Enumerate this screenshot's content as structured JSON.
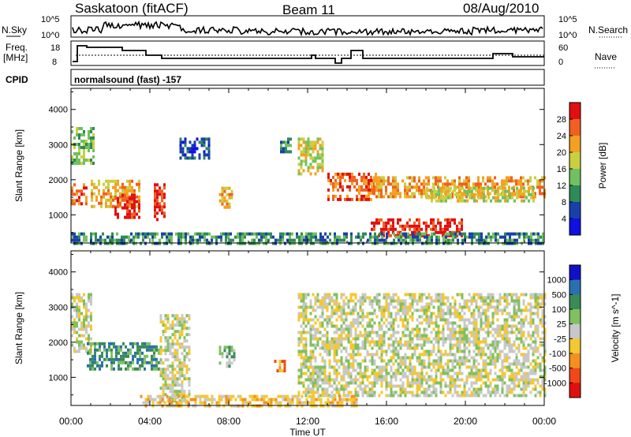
{
  "header": {
    "station": "Saskatoon (fitACF)",
    "beam": "Beam 11",
    "date": "08/Aug/2010"
  },
  "top_panels": {
    "nsky_label": "N.Sky",
    "nsearch_label": "N.Search",
    "nsky_ticks": [
      "10^5",
      "10^0"
    ],
    "nsearch_ticks": [
      "10^5",
      "10^0"
    ],
    "freq_label_line1": "Freq.",
    "freq_label_line2": "[MHz]",
    "freq_ticks": [
      "18",
      "8"
    ],
    "nave_label": "Nave",
    "nave_ticks": [
      "60",
      "0"
    ],
    "cpid_label": "CPID",
    "cpid_value": "normalsound (fast) -157"
  },
  "chart_data": [
    {
      "type": "heatmap",
      "title": "",
      "xlabel": "Time UT",
      "ylabel": "Slant Range [km]",
      "x_ticks": [
        "00:00",
        "04:00",
        "08:00",
        "12:00",
        "16:00",
        "20:00",
        "00:00"
      ],
      "y_ticks": [
        1000,
        2000,
        3000,
        4000
      ],
      "xlim": [
        0,
        24
      ],
      "ylim": [
        200,
        4600
      ],
      "colorbar": {
        "label": "Power [dB]",
        "ticks": [
          "28",
          "24",
          "20",
          "16",
          "12",
          "8",
          "4"
        ],
        "colors": [
          "#1010e0",
          "#1840a8",
          "#2e8a57",
          "#72c060",
          "#c8d040",
          "#f4a020",
          "#f06020",
          "#e01010"
        ]
      },
      "regions": [
        {
          "t0": 0.0,
          "t1": 1.2,
          "r0": 2500,
          "r1": 3500,
          "level": 3
        },
        {
          "t0": 0.0,
          "t1": 0.8,
          "r0": 1300,
          "r1": 1900,
          "level": 6
        },
        {
          "t0": 1.0,
          "t1": 3.5,
          "r0": 1200,
          "r1": 2000,
          "level": 5
        },
        {
          "t0": 2.2,
          "t1": 3.5,
          "r0": 900,
          "r1": 1600,
          "level": 7
        },
        {
          "t0": 4.2,
          "t1": 4.8,
          "r0": 900,
          "r1": 1900,
          "level": 7
        },
        {
          "t0": 5.5,
          "t1": 7.0,
          "r0": 2600,
          "r1": 3200,
          "level": 1
        },
        {
          "t0": 7.5,
          "t1": 8.2,
          "r0": 1200,
          "r1": 1800,
          "level": 5
        },
        {
          "t0": 10.6,
          "t1": 11.2,
          "r0": 2800,
          "r1": 3200,
          "level": 2
        },
        {
          "t0": 11.5,
          "t1": 12.8,
          "r0": 2200,
          "r1": 3200,
          "level": 4
        },
        {
          "t0": 13.0,
          "t1": 15.5,
          "r0": 1400,
          "r1": 2200,
          "level": 6
        },
        {
          "t0": 15.2,
          "t1": 19.8,
          "r0": 400,
          "r1": 900,
          "level": 7
        },
        {
          "t0": 15.2,
          "t1": 24.0,
          "r0": 1500,
          "r1": 2100,
          "level": 5
        },
        {
          "t0": 18.0,
          "t1": 23.5,
          "r0": 1400,
          "r1": 1800,
          "level": 4
        },
        {
          "t0": 0.0,
          "t1": 24.0,
          "r0": 200,
          "r1": 500,
          "level": 2
        }
      ]
    },
    {
      "type": "heatmap",
      "title": "",
      "xlabel": "Time UT",
      "ylabel": "Slant Range [km]",
      "x_ticks": [
        "00:00",
        "04:00",
        "08:00",
        "12:00",
        "16:00",
        "20:00",
        "00:00"
      ],
      "y_ticks": [
        1000,
        2000,
        3000,
        4000
      ],
      "xlim": [
        0,
        24
      ],
      "ylim": [
        200,
        4600
      ],
      "colorbar": {
        "label": "Velocity [m s^-1]",
        "ticks": [
          "1000",
          "500",
          "100",
          "25",
          "-25",
          "-100",
          "-500",
          "-1000"
        ],
        "colors": [
          "#e01010",
          "#f04818",
          "#f49020",
          "#f4c830",
          "#c8c8c8",
          "#80c060",
          "#3a8a5a",
          "#2a70b0",
          "#1010c8"
        ]
      },
      "regions": [
        {
          "t0": 0.0,
          "t1": 1.0,
          "r0": 1700,
          "r1": 3400,
          "level": 4
        },
        {
          "t0": 0.8,
          "t1": 4.5,
          "r0": 1200,
          "r1": 2000,
          "level": 6
        },
        {
          "t0": 4.5,
          "t1": 6.0,
          "r0": 300,
          "r1": 2800,
          "level": 4
        },
        {
          "t0": 7.5,
          "t1": 8.3,
          "r0": 1300,
          "r1": 1900,
          "level": 5
        },
        {
          "t0": 10.3,
          "t1": 10.8,
          "r0": 1200,
          "r1": 1500,
          "level": 2
        },
        {
          "t0": 11.5,
          "t1": 24.0,
          "r0": 500,
          "r1": 3400,
          "level": 4
        },
        {
          "t0": 3.5,
          "t1": 14.5,
          "r0": 200,
          "r1": 500,
          "level": 3
        }
      ]
    }
  ]
}
